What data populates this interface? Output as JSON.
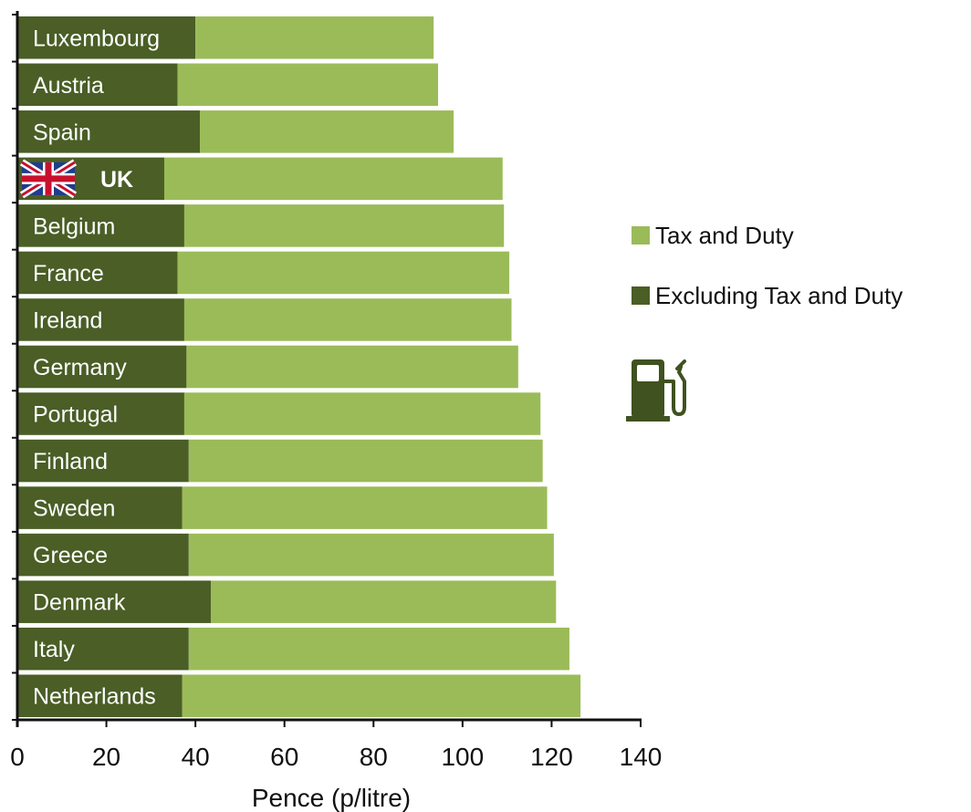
{
  "chart_data": {
    "type": "bar",
    "orientation": "horizontal",
    "stacked": true,
    "categories": [
      "Luxembourg",
      "Austria",
      "Spain",
      "UK",
      "Belgium",
      "France",
      "Ireland",
      "Germany",
      "Portugal",
      "Finland",
      "Sweden",
      "Greece",
      "Denmark",
      "Italy",
      "Netherlands"
    ],
    "highlight_category": "UK",
    "series": [
      {
        "name": "Excluding Tax and Duty",
        "color": "#4a5e26",
        "values": [
          40,
          36,
          41,
          33,
          37.5,
          36,
          37.5,
          38,
          37.5,
          38.5,
          37,
          38.5,
          43.5,
          38.5,
          37
        ]
      },
      {
        "name": "Tax and Duty",
        "color": "#9bbb59",
        "values": [
          53.5,
          58.5,
          57,
          76,
          71.8,
          74.5,
          73.5,
          74.5,
          80,
          79.5,
          82,
          82,
          77.5,
          85.5,
          89.5
        ]
      }
    ],
    "xlabel": "Pence (p/litre)",
    "ylabel": "",
    "xlim": [
      0,
      140
    ],
    "xticks": [
      0,
      20,
      40,
      60,
      80,
      100,
      120,
      140
    ],
    "grid": false,
    "legend_position": "right",
    "legend_order": [
      "Tax and Duty",
      "Excluding Tax and Duty"
    ],
    "icons": [
      "uk-flag-icon",
      "fuel-pump-icon"
    ]
  }
}
